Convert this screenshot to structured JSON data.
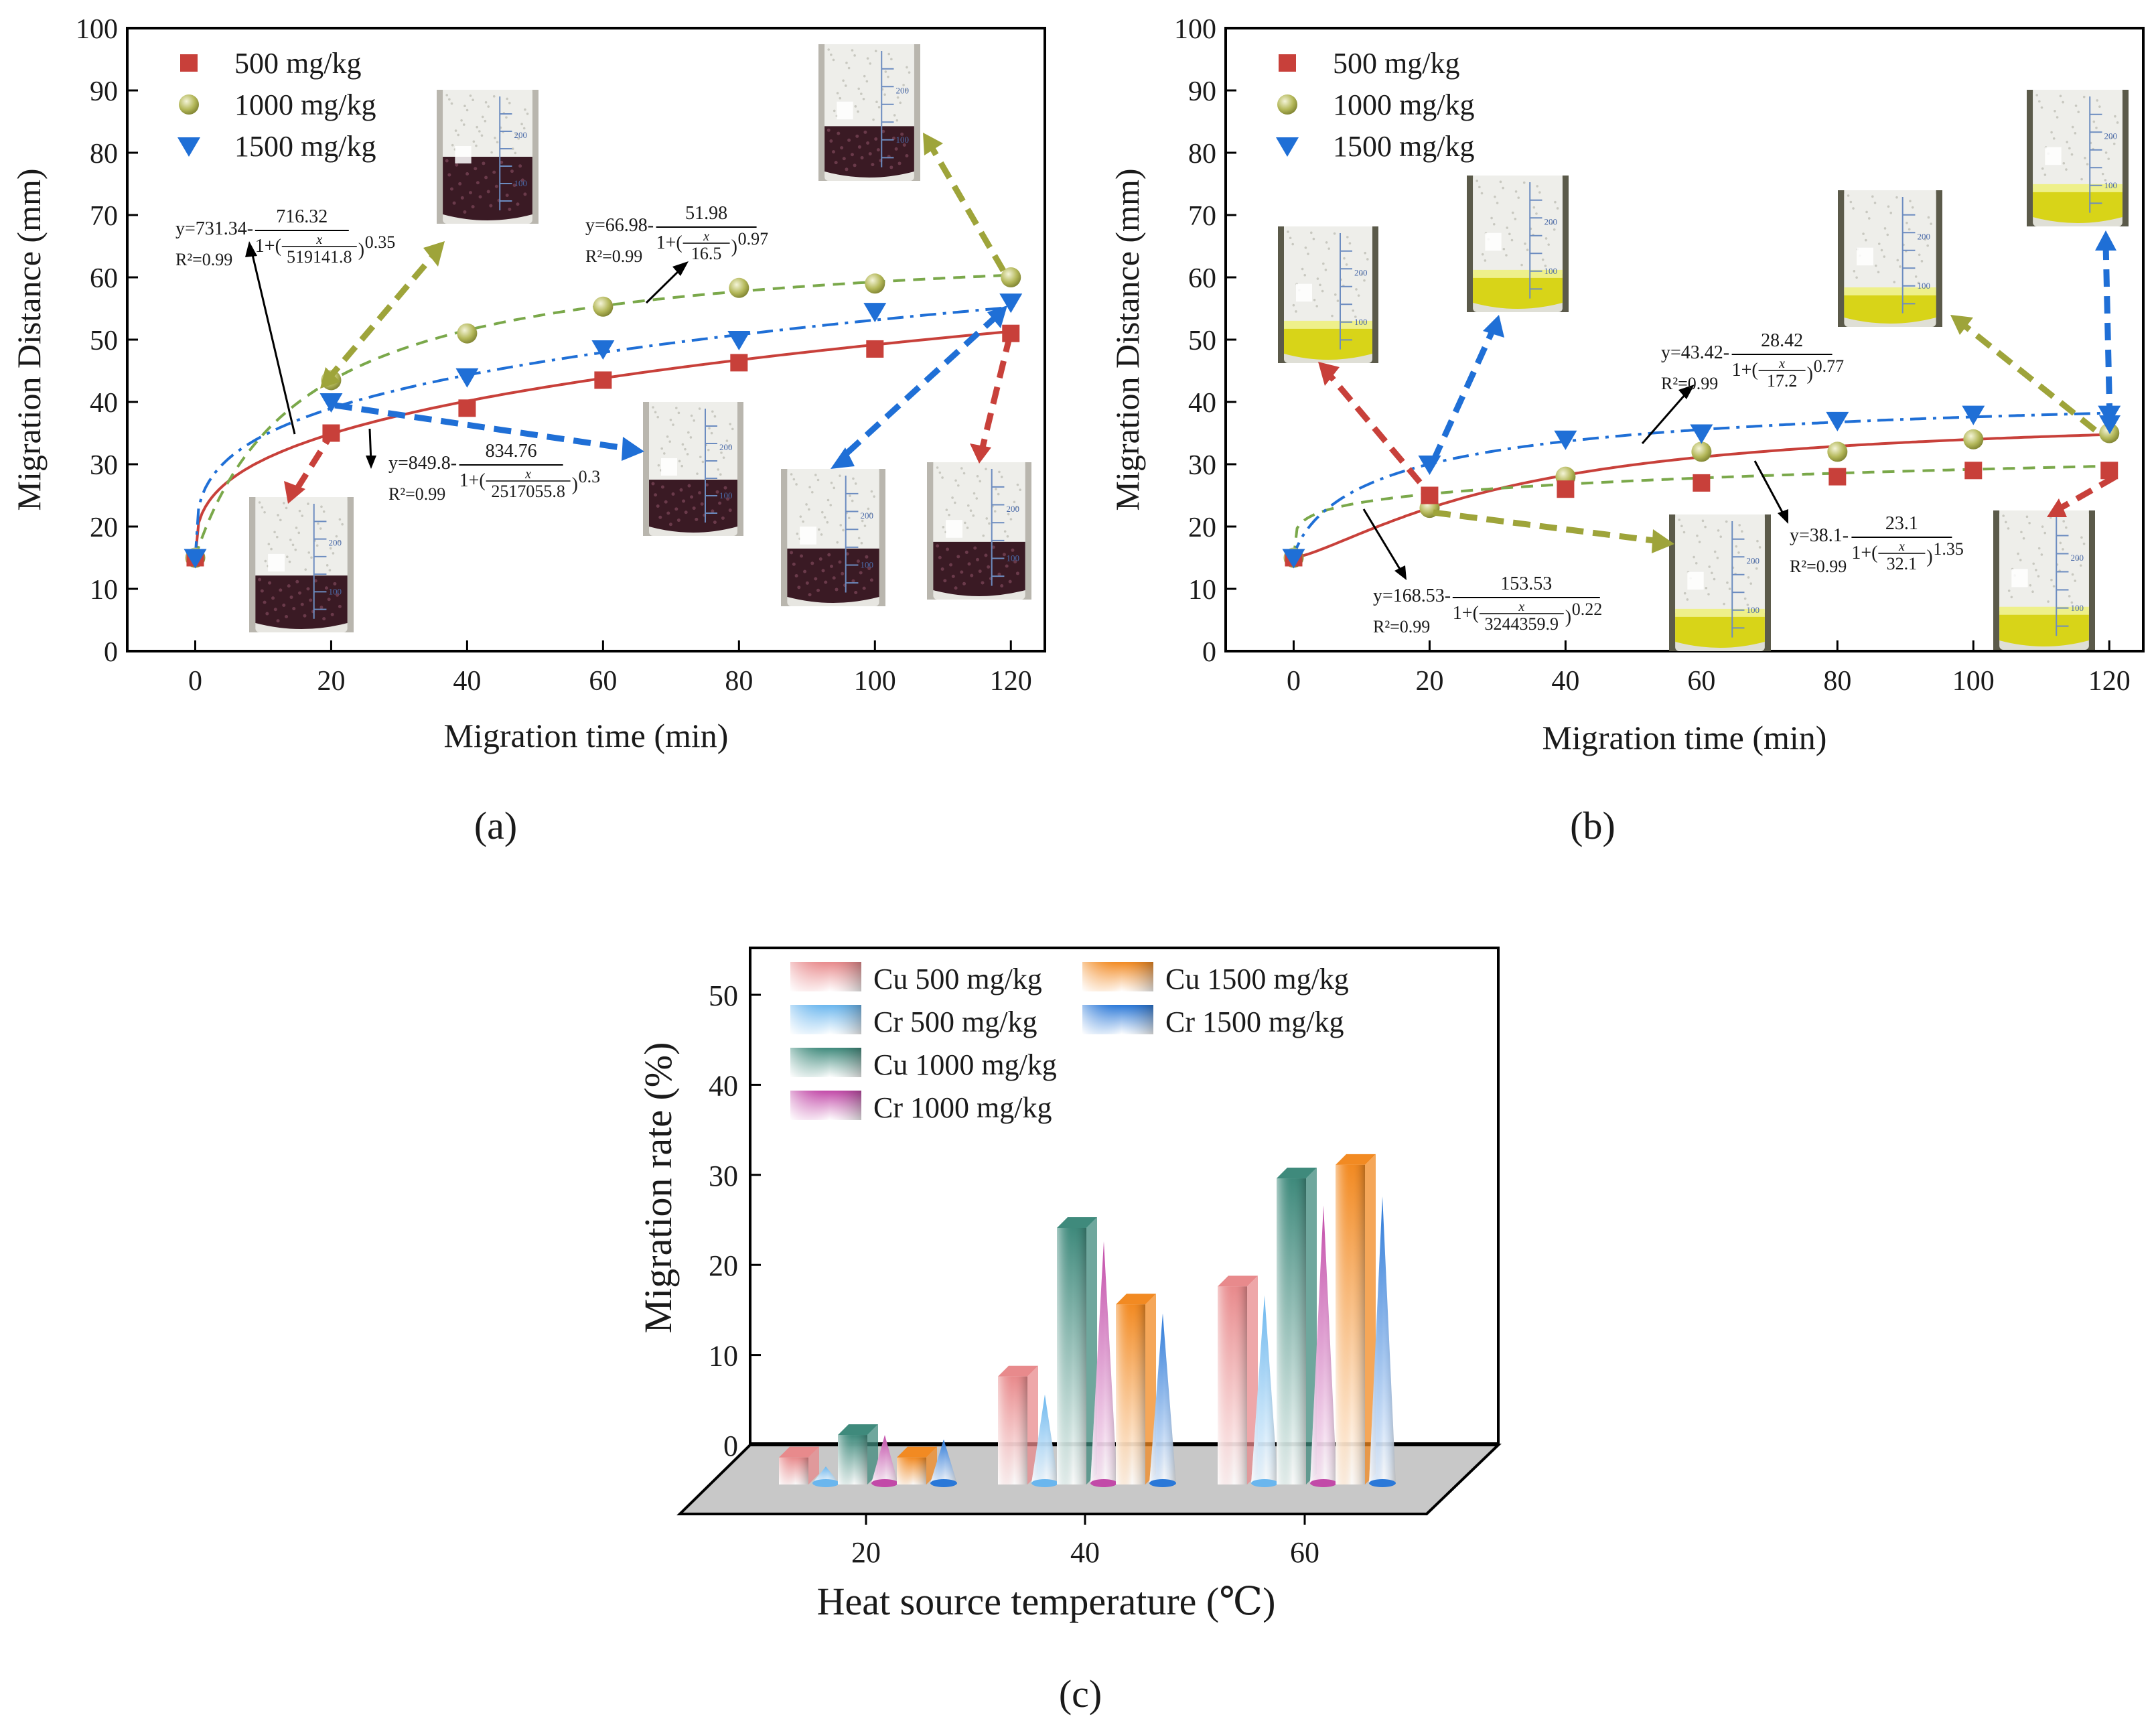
{
  "colors": {
    "red": "#c8403a",
    "green": "#9ea43a",
    "green_line": "#7aa84a",
    "blue": "#1f6fd6",
    "frame": "#000000",
    "floor": "#c8c8c8",
    "liquid_dark": "#3a1a24",
    "liquid_yellow": "#d8d418"
  },
  "chart_data": [
    {
      "id": "a",
      "type": "scatter",
      "panel_label": "(a)",
      "xlabel": "Migration time (min)",
      "ylabel": "Migration Distance (mm)",
      "xlim": [
        -10,
        125
      ],
      "ylim": [
        0,
        100
      ],
      "xticks": [
        0,
        20,
        40,
        60,
        80,
        100,
        120
      ],
      "yticks": [
        0,
        10,
        20,
        30,
        40,
        50,
        60,
        70,
        80,
        90,
        100
      ],
      "liquid": "dark",
      "series": [
        {
          "name": "500 mg/kg",
          "color": "#c8403a",
          "marker": "square",
          "line": "solid",
          "x": [
            0,
            20,
            40,
            60,
            80,
            100,
            120
          ],
          "y": [
            15,
            35,
            39,
            43.5,
            46.3,
            48.5,
            51
          ],
          "fit": {
            "a": 731.34,
            "b": 716.32,
            "c": 519141.8,
            "n": 0.35
          }
        },
        {
          "name": "1000 mg/kg",
          "color": "#9ea43a",
          "marker": "circle",
          "line": "dash",
          "x": [
            0,
            20,
            40,
            60,
            80,
            100,
            120
          ],
          "y": [
            15,
            43.5,
            51,
            55.3,
            58.3,
            59,
            60
          ],
          "fit": {
            "a": 66.98,
            "b": 51.98,
            "c": 16.5,
            "n": 0.97
          }
        },
        {
          "name": "1500 mg/kg",
          "color": "#1f6fd6",
          "marker": "triangle",
          "line": "dashdot",
          "x": [
            0,
            20,
            40,
            60,
            80,
            100,
            120
          ],
          "y": [
            15,
            40,
            44,
            48.5,
            50,
            54.5,
            56
          ],
          "fit": {
            "a": 849.8,
            "b": 834.76,
            "c": 2517055.8,
            "n": 0.3
          }
        }
      ],
      "equations": [
        {
          "head": "y=731.34-",
          "num": "716.32",
          "c": "519141.8",
          "n": "0.35",
          "x": "x",
          "r2": "R²=0.99"
        },
        {
          "head": "y=66.98-",
          "num": "51.98",
          "c": "16.5",
          "n": "0.97",
          "x": "x",
          "r2": "R²=0.99"
        },
        {
          "head": "y=849.8-",
          "num": "834.76",
          "c": "2517055.8",
          "n": "0.3",
          "x": "x",
          "r2": "R²=0.99"
        }
      ],
      "beaker_marks": [
        "200",
        "100"
      ]
    },
    {
      "id": "b",
      "type": "scatter",
      "panel_label": "(b)",
      "xlabel": "Migration time (min)",
      "ylabel": "Migration Distance (mm)",
      "xlim": [
        -10,
        125
      ],
      "ylim": [
        0,
        100
      ],
      "xticks": [
        0,
        20,
        40,
        60,
        80,
        100,
        120
      ],
      "yticks": [
        0,
        10,
        20,
        30,
        40,
        50,
        60,
        70,
        80,
        90,
        100
      ],
      "liquid": "yellow",
      "series": [
        {
          "name": "500 mg/kg",
          "color": "#c8403a",
          "marker": "square",
          "line": "solid",
          "x": [
            0,
            20,
            40,
            60,
            80,
            100,
            120
          ],
          "y": [
            15,
            25,
            26,
            27,
            28,
            29,
            29
          ],
          "fit": {
            "a": 38.1,
            "b": 23.1,
            "c": 32.1,
            "n": 1.35
          }
        },
        {
          "name": "1000 mg/kg",
          "color": "#9ea43a",
          "marker": "circle",
          "line": "dash",
          "x": [
            0,
            20,
            40,
            60,
            80,
            100,
            120
          ],
          "y": [
            15,
            23,
            28,
            32,
            32,
            34,
            35
          ],
          "fit": {
            "a": 168.53,
            "b": 153.53,
            "c": 3244359.9,
            "n": 0.22
          }
        },
        {
          "name": "1500 mg/kg",
          "color": "#1f6fd6",
          "marker": "triangle",
          "line": "dashdot",
          "x": [
            0,
            20,
            40,
            60,
            80,
            100,
            120
          ],
          "y": [
            15,
            30,
            34,
            35,
            37,
            38,
            38
          ],
          "fit": {
            "a": 43.42,
            "b": 28.42,
            "c": 17.2,
            "n": 0.77
          }
        }
      ],
      "equations": [
        {
          "head": "y=43.42-",
          "num": "28.42",
          "c": "17.2",
          "n": "0.77",
          "x": "x",
          "r2": "R²=0.99"
        },
        {
          "head": "y=38.1-",
          "num": "23.1",
          "c": "32.1",
          "n": "1.35",
          "x": "x",
          "r2": "R²=0.99"
        },
        {
          "head": "y=168.53-",
          "num": "153.53",
          "c": "3244359.9",
          "n": "0.22",
          "x": "x",
          "r2": "R²=0.99"
        }
      ],
      "beaker_marks": [
        "200",
        "100"
      ]
    },
    {
      "id": "c",
      "type": "bar",
      "panel_label": "(c)",
      "xlabel": "Heat source temperature (℃)",
      "ylabel": "Migration rate (%)",
      "ylim": [
        0,
        55
      ],
      "yticks": [
        0,
        10,
        20,
        30,
        40,
        50
      ],
      "categories": [
        "20",
        "40",
        "60"
      ],
      "series": [
        {
          "name": "Cu 500 mg/kg",
          "shape": "prism",
          "color": "#e88a8c",
          "values": [
            3,
            12,
            22
          ]
        },
        {
          "name": "Cr 500 mg/kg",
          "shape": "cone",
          "color": "#6ab6ee",
          "values": [
            2,
            10,
            21
          ]
        },
        {
          "name": "Cu 1000 mg/kg",
          "shape": "prism",
          "color": "#3f8a7c",
          "values": [
            5.5,
            28.5,
            34
          ]
        },
        {
          "name": "Cr 1000 mg/kg",
          "shape": "cone",
          "color": "#c24aa8",
          "values": [
            5.5,
            27,
            31
          ]
        },
        {
          "name": "Cu 1500 mg/kg",
          "shape": "prism",
          "color": "#f28a22",
          "values": [
            3,
            20,
            35.5
          ]
        },
        {
          "name": "Cr 1500 mg/kg",
          "shape": "cone",
          "color": "#2a78d8",
          "values": [
            5,
            19,
            32
          ]
        }
      ]
    }
  ]
}
